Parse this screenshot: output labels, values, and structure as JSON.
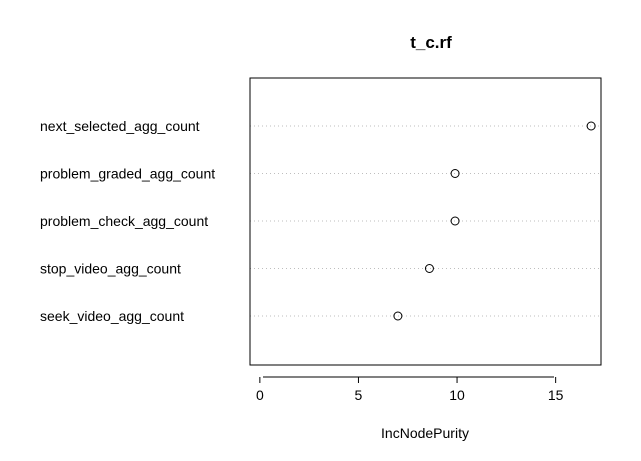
{
  "chart_data": {
    "type": "scatter",
    "title": "t_c.rf",
    "xlabel": "IncNodePurity",
    "ylabel": "",
    "xlim": [
      -0.5,
      17.3
    ],
    "x_ticks": [
      "0",
      "5",
      "10",
      "15"
    ],
    "grid": "dotted horizontal guide lines per variable",
    "categories": [
      "next_selected_agg_count",
      "problem_graded_agg_count",
      "problem_check_agg_count",
      "stop_video_agg_count",
      "seek_video_agg_count"
    ],
    "values": [
      16.8,
      9.9,
      9.9,
      8.6,
      7.0
    ],
    "marker": "open-circle",
    "colors": {
      "marker": "#000000",
      "guide": "#bebebe",
      "frame": "#000000"
    }
  }
}
